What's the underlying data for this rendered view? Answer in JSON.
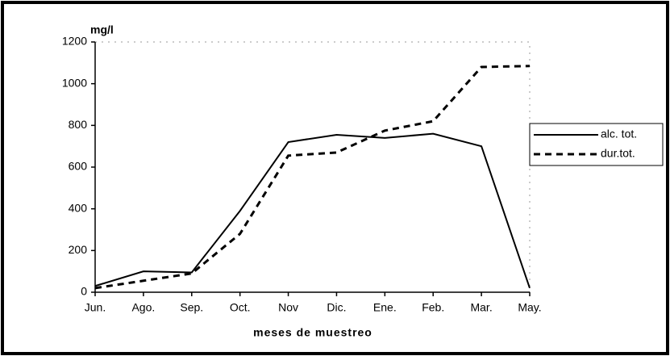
{
  "chart_data": {
    "type": "line",
    "y_label": "mg/l",
    "x_label": "meses de muestreo",
    "categories": [
      "Jun.",
      "Ago.",
      "Sep.",
      "Oct.",
      "Nov",
      "Dic.",
      "Ene.",
      "Feb.",
      "Mar.",
      "May."
    ],
    "series": [
      {
        "name": "alc. tot.",
        "color": "#000000",
        "dash": "solid",
        "values": [
          30,
          100,
          95,
          390,
          720,
          755,
          740,
          760,
          700,
          20
        ]
      },
      {
        "name": "dur.tot.",
        "color": "#000000",
        "dash": "dashed",
        "values": [
          20,
          55,
          90,
          280,
          655,
          670,
          775,
          820,
          1080,
          1085
        ]
      }
    ],
    "ylim": [
      0,
      1200
    ],
    "yticks": [
      0,
      200,
      400,
      600,
      800,
      1000,
      1200
    ],
    "grid": false,
    "legend": "right"
  }
}
